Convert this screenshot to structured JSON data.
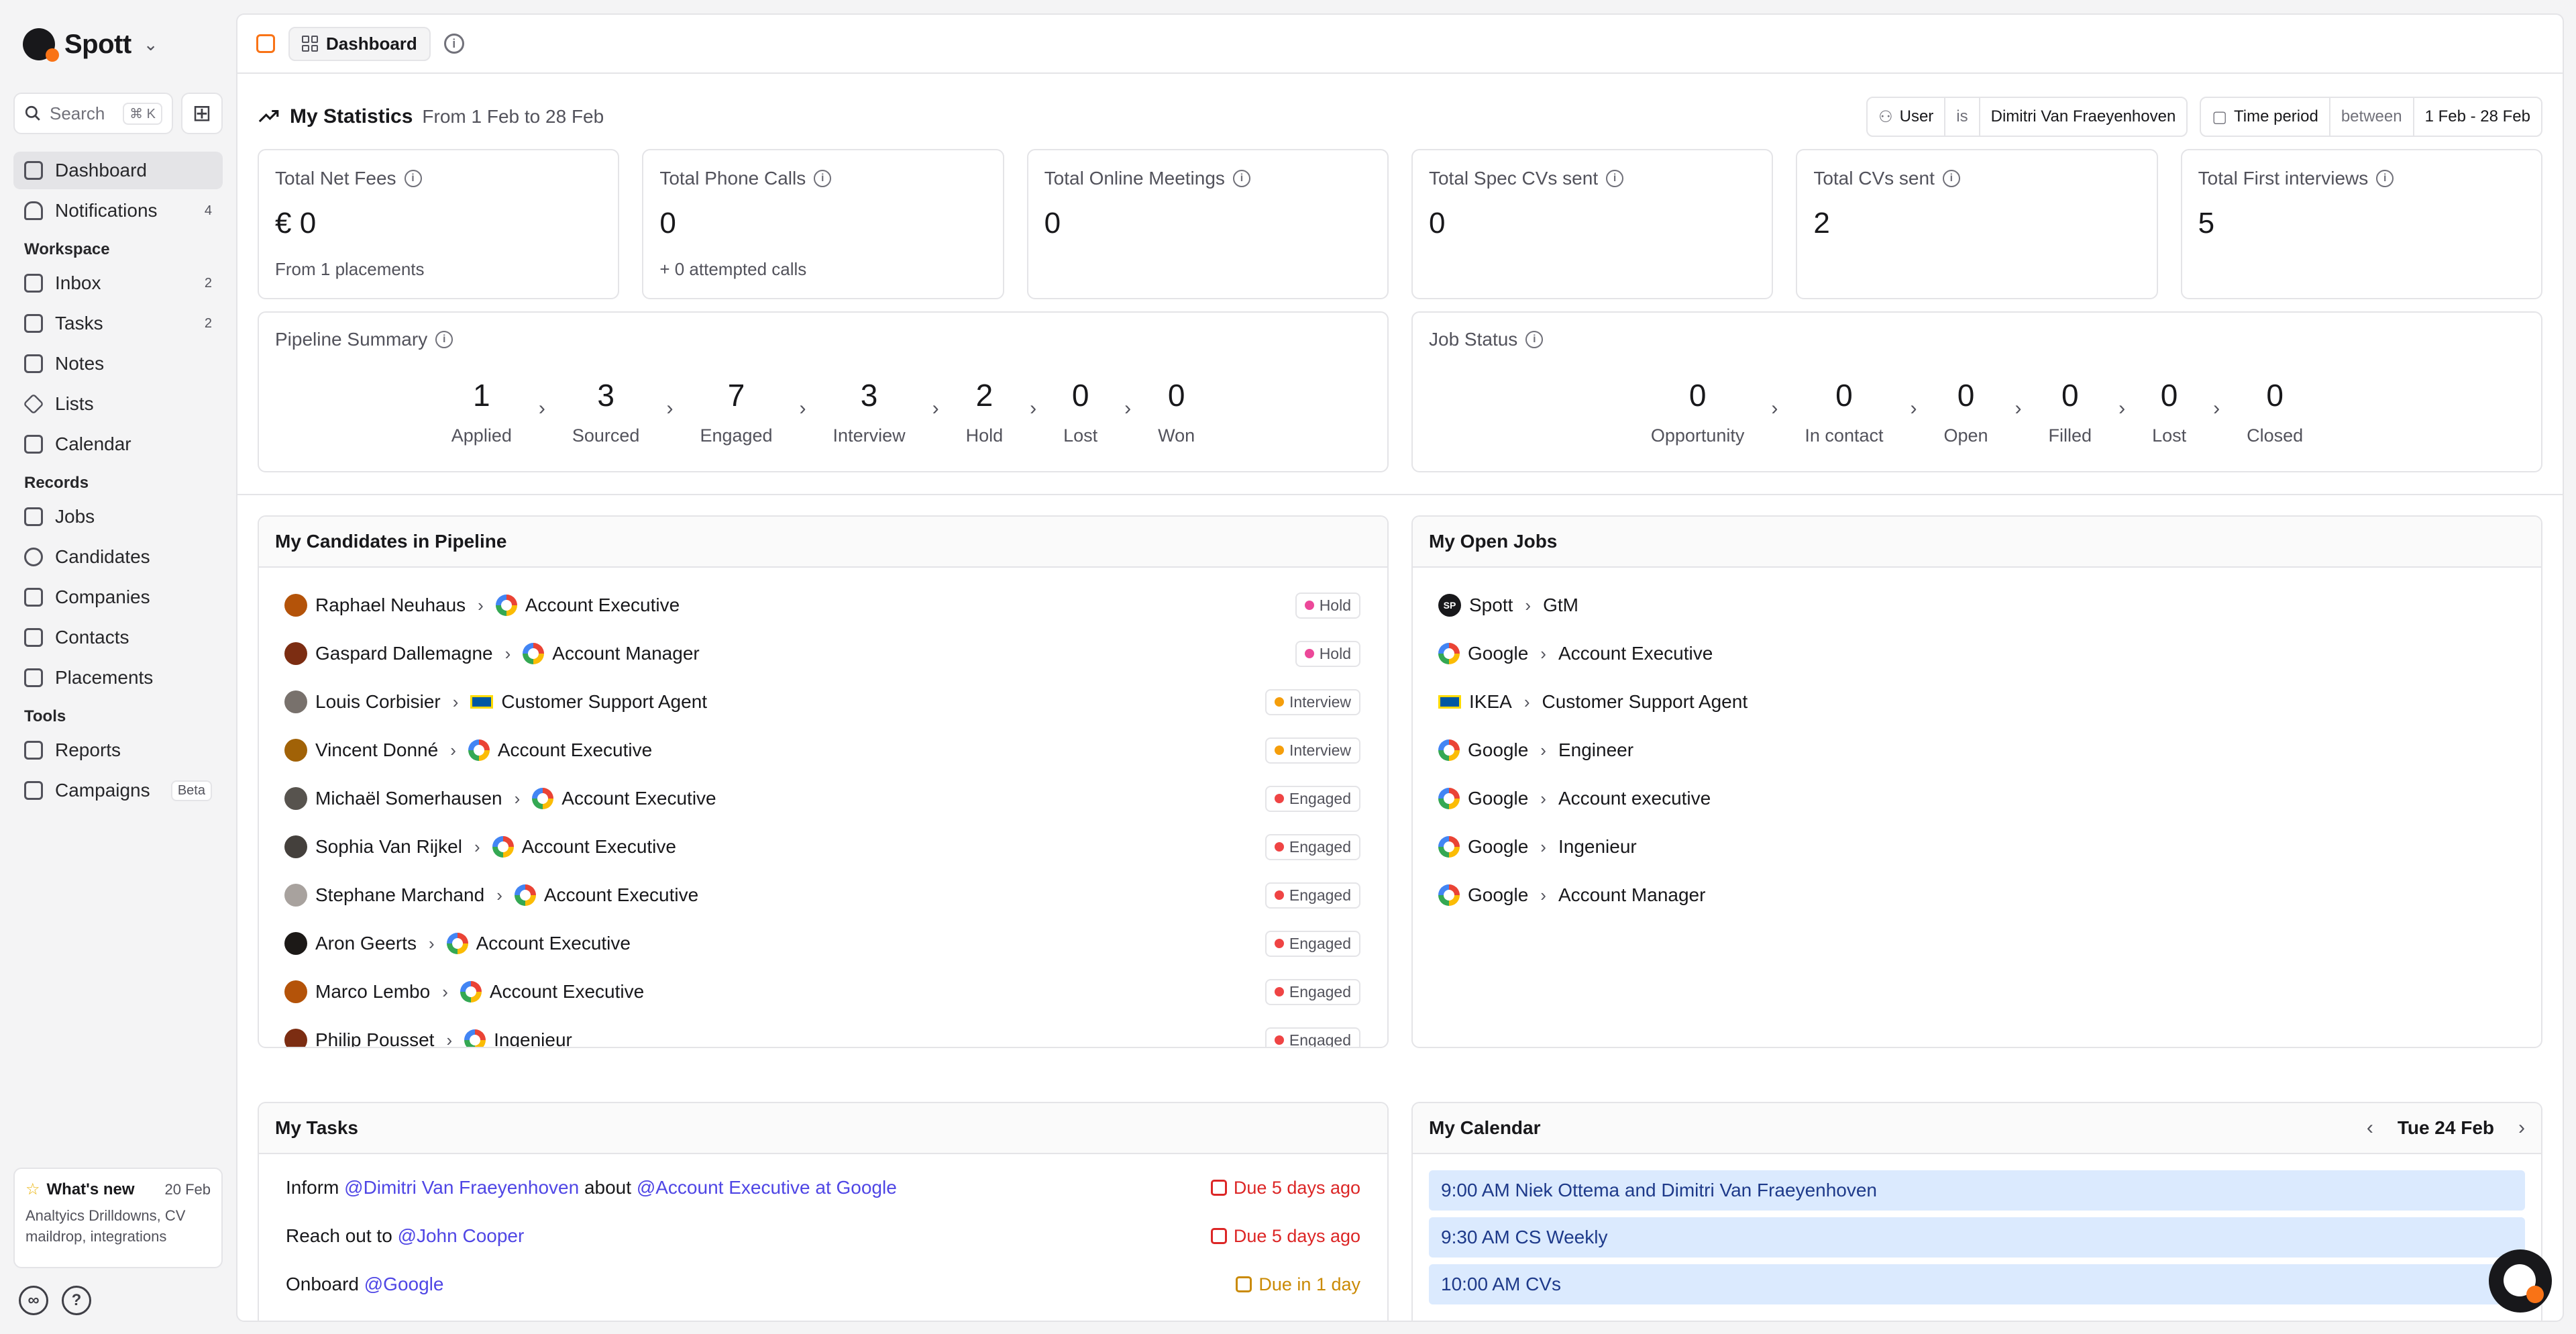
{
  "app": {
    "name": "Spott"
  },
  "search": {
    "label": "Search",
    "shortcut": "⌘ K"
  },
  "nav": {
    "dashboard": "Dashboard",
    "notifications": {
      "label": "Notifications",
      "count": "4"
    },
    "workspace_title": "Workspace",
    "inbox": {
      "label": "Inbox",
      "count": "2"
    },
    "tasks": {
      "label": "Tasks",
      "count": "2"
    },
    "notes": "Notes",
    "lists": "Lists",
    "calendar": "Calendar",
    "records_title": "Records",
    "jobs": "Jobs",
    "candidates": "Candidates",
    "companies": "Companies",
    "contacts": "Contacts",
    "placements": "Placements",
    "tools_title": "Tools",
    "reports": "Reports",
    "campaigns": {
      "label": "Campaigns",
      "badge": "Beta"
    }
  },
  "whats_new": {
    "title": "What's new",
    "date": "20 Feb",
    "body": "Analtyics Drilldowns, CV maildrop, integrations"
  },
  "topbar": {
    "tab": "Dashboard"
  },
  "stats": {
    "title": "My Statistics",
    "range": "From 1 Feb to 28 Feb",
    "filter_user": {
      "field": "User",
      "op": "is",
      "value": "Dimitri Van Fraeyenhoven"
    },
    "filter_time": {
      "field": "Time period",
      "op": "between",
      "value": "1 Feb - 28 Feb"
    },
    "cards": [
      {
        "label": "Total Net Fees",
        "value": "€ 0",
        "sub": "From 1 placements"
      },
      {
        "label": "Total Phone Calls",
        "value": "0",
        "sub": "+ 0 attempted calls"
      },
      {
        "label": "Total Online Meetings",
        "value": "0",
        "sub": ""
      },
      {
        "label": "Total Spec CVs sent",
        "value": "0",
        "sub": ""
      },
      {
        "label": "Total CVs sent",
        "value": "2",
        "sub": ""
      },
      {
        "label": "Total First interviews",
        "value": "5",
        "sub": ""
      }
    ]
  },
  "pipeline": {
    "title": "Pipeline Summary",
    "stages": [
      {
        "num": "1",
        "label": "Applied"
      },
      {
        "num": "3",
        "label": "Sourced"
      },
      {
        "num": "7",
        "label": "Engaged"
      },
      {
        "num": "3",
        "label": "Interview"
      },
      {
        "num": "2",
        "label": "Hold"
      },
      {
        "num": "0",
        "label": "Lost"
      },
      {
        "num": "0",
        "label": "Won"
      }
    ]
  },
  "job_status": {
    "title": "Job Status",
    "stages": [
      {
        "num": "0",
        "label": "Opportunity"
      },
      {
        "num": "0",
        "label": "In contact"
      },
      {
        "num": "0",
        "label": "Open"
      },
      {
        "num": "0",
        "label": "Filled"
      },
      {
        "num": "0",
        "label": "Lost"
      },
      {
        "num": "0",
        "label": "Closed"
      }
    ]
  },
  "candidates_panel": {
    "title": "My Candidates in Pipeline",
    "rows": [
      {
        "name": "Raphael Neuhaus",
        "job": "Account Executive",
        "status": "Hold",
        "color": "#ec4899",
        "logo": "google"
      },
      {
        "name": "Gaspard Dallemagne",
        "job": "Account Manager",
        "status": "Hold",
        "color": "#ec4899",
        "logo": "google"
      },
      {
        "name": "Louis Corbisier",
        "job": "Customer Support Agent",
        "status": "Interview",
        "color": "#f59e0b",
        "logo": "ikea"
      },
      {
        "name": "Vincent Donné",
        "job": "Account Executive",
        "status": "Interview",
        "color": "#f59e0b",
        "logo": "google"
      },
      {
        "name": "Michaël Somerhausen",
        "job": "Account Executive",
        "status": "Engaged",
        "color": "#ef4444",
        "logo": "google"
      },
      {
        "name": "Sophia Van Rijkel",
        "job": "Account Executive",
        "status": "Engaged",
        "color": "#ef4444",
        "logo": "google"
      },
      {
        "name": "Stephane Marchand",
        "job": "Account Executive",
        "status": "Engaged",
        "color": "#ef4444",
        "logo": "google"
      },
      {
        "name": "Aron Geerts",
        "job": "Account Executive",
        "status": "Engaged",
        "color": "#ef4444",
        "logo": "google"
      },
      {
        "name": "Marco Lembo",
        "job": "Account Executive",
        "status": "Engaged",
        "color": "#ef4444",
        "logo": "google"
      },
      {
        "name": "Philip Pousset",
        "job": "Ingenieur",
        "status": "Engaged",
        "color": "#ef4444",
        "logo": "google"
      }
    ]
  },
  "jobs_panel": {
    "title": "My Open Jobs",
    "rows": [
      {
        "company": "Spott",
        "job": "GtM",
        "logo": "spott",
        "logo_text": "SP"
      },
      {
        "company": "Google",
        "job": "Account Executive",
        "logo": "google"
      },
      {
        "company": "IKEA",
        "job": "Customer Support Agent",
        "logo": "ikea"
      },
      {
        "company": "Google",
        "job": "Engineer",
        "logo": "google"
      },
      {
        "company": "Google",
        "job": "Account executive",
        "logo": "google"
      },
      {
        "company": "Google",
        "job": "Ingenieur",
        "logo": "google"
      },
      {
        "company": "Google",
        "job": "Account Manager",
        "logo": "google"
      }
    ]
  },
  "tasks_panel": {
    "title": "My Tasks",
    "rows": [
      {
        "parts": [
          [
            "t",
            "Inform "
          ],
          [
            "m",
            "@Dimitri Van Fraeyenhoven"
          ],
          [
            "t",
            " about "
          ],
          [
            "m",
            "@Account Executive at Google"
          ]
        ],
        "due": "Due 5 days ago",
        "color": "#dc2626"
      },
      {
        "parts": [
          [
            "t",
            "Reach out to "
          ],
          [
            "m",
            "@John Cooper"
          ]
        ],
        "due": "Due 5 days ago",
        "color": "#dc2626"
      },
      {
        "parts": [
          [
            "t",
            "Onboard "
          ],
          [
            "m",
            "@Google"
          ]
        ],
        "due": "Due in 1 day",
        "color": "#ca8a04"
      }
    ]
  },
  "calendar_panel": {
    "title": "My Calendar",
    "date": "Tue 24 Feb",
    "events": [
      "9:00 AM Niek Ottema and Dimitri Van Fraeyenhoven",
      "9:30 AM CS Weekly",
      "10:00 AM CVs"
    ]
  }
}
